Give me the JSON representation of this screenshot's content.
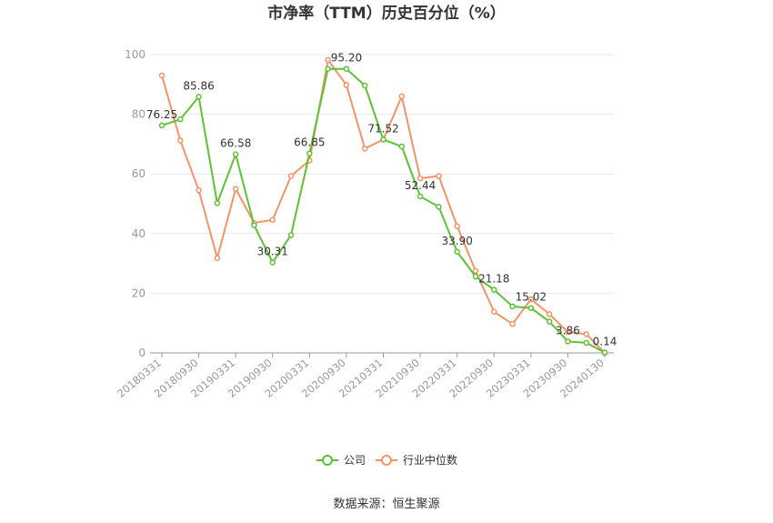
{
  "chart_data": {
    "type": "line",
    "title": "市净率（TTM）历史百分位（%）",
    "source": "数据来源：恒生聚源",
    "ylim": [
      0,
      100
    ],
    "yticks": [
      0,
      20,
      40,
      60,
      80,
      100
    ],
    "x": [
      "20180331",
      "20180630",
      "20180930",
      "20181231",
      "20190331",
      "20190630",
      "20190930",
      "20191231",
      "20200331",
      "20200630",
      "20200930",
      "20201231",
      "20210331",
      "20210630",
      "20210930",
      "20211231",
      "20220331",
      "20220630",
      "20220930",
      "20221231",
      "20230331",
      "20230630",
      "20230930",
      "20231231",
      "20240130"
    ],
    "xtick_labels": [
      "20180331",
      "20180930",
      "20190331",
      "20190930",
      "20200331",
      "20200930",
      "20210331",
      "20210930",
      "20220331",
      "20220930",
      "20230331",
      "20230930",
      "20240130"
    ],
    "series": [
      {
        "name": "公司",
        "color": "#5ec234",
        "values": [
          76.25,
          78.3,
          85.86,
          50.2,
          66.58,
          42.8,
          30.31,
          39.5,
          66.85,
          95.2,
          95.2,
          89.6,
          71.52,
          69.2,
          52.44,
          49.0,
          33.9,
          25.6,
          21.18,
          15.6,
          15.02,
          10.5,
          3.86,
          3.4,
          0.14
        ]
      },
      {
        "name": "行业中位数",
        "color": "#f39467",
        "values": [
          93.0,
          71.2,
          54.5,
          31.8,
          55.0,
          43.6,
          44.6,
          59.3,
          64.5,
          98.2,
          89.8,
          68.5,
          71.5,
          86.0,
          58.5,
          59.3,
          42.5,
          27.5,
          13.8,
          9.7,
          18.0,
          13.0,
          7.0,
          6.3,
          0.0
        ]
      }
    ],
    "data_labels": [
      {
        "series": 0,
        "index": 0,
        "text": "76.25",
        "pos": "above"
      },
      {
        "series": 0,
        "index": 2,
        "text": "85.86",
        "pos": "above"
      },
      {
        "series": 0,
        "index": 4,
        "text": "66.58",
        "pos": "above"
      },
      {
        "series": 0,
        "index": 6,
        "text": "30.31",
        "pos": "above"
      },
      {
        "series": 0,
        "index": 8,
        "text": "66.85",
        "pos": "above"
      },
      {
        "series": 0,
        "index": 10,
        "text": "95.20",
        "pos": "above"
      },
      {
        "series": 0,
        "index": 12,
        "text": "71.52",
        "pos": "above"
      },
      {
        "series": 0,
        "index": 14,
        "text": "52.44",
        "pos": "above"
      },
      {
        "series": 0,
        "index": 16,
        "text": "33.90",
        "pos": "above"
      },
      {
        "series": 0,
        "index": 18,
        "text": "21.18",
        "pos": "above"
      },
      {
        "series": 0,
        "index": 20,
        "text": "15.02",
        "pos": "above"
      },
      {
        "series": 0,
        "index": 22,
        "text": "3.86",
        "pos": "above"
      },
      {
        "series": 0,
        "index": 24,
        "text": "0.14",
        "pos": "above"
      }
    ],
    "legend": {
      "position": "bottom"
    },
    "grid": true
  }
}
